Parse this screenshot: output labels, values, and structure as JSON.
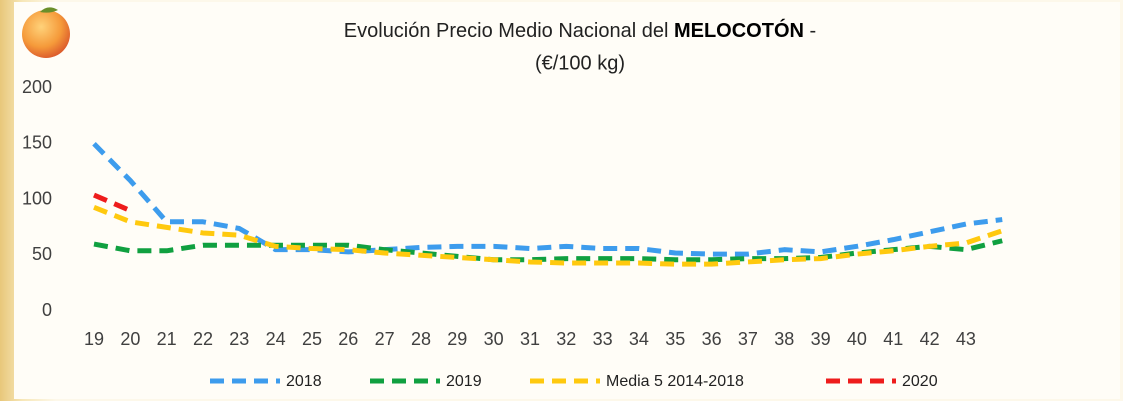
{
  "chart_data": {
    "type": "line",
    "title": "Evolución Precio Medio Nacional del",
    "title_highlight": "MELOCOTÓN",
    "title_suffix": "-",
    "subtitle": "(€/100 kg)",
    "categories": [
      "19",
      "20",
      "21",
      "22",
      "23",
      "24",
      "25",
      "26",
      "27",
      "28",
      "29",
      "30",
      "31",
      "32",
      "33",
      "34",
      "35",
      "36",
      "37",
      "38",
      "39",
      "40",
      "41",
      "42",
      "43",
      null
    ],
    "series": [
      {
        "name": "2018",
        "color": "#3d9ced",
        "values": [
          150,
          117,
          80,
          80,
          74,
          55,
          55,
          53,
          55,
          57,
          58,
          58,
          56,
          58,
          56,
          56,
          52,
          51,
          51,
          55,
          53,
          58,
          64,
          71,
          78,
          82
        ]
      },
      {
        "name": "2019",
        "color": "#10a040",
        "values": [
          60,
          54,
          54,
          59,
          59,
          59,
          59,
          59,
          55,
          52,
          49,
          46,
          46,
          47,
          47,
          47,
          46,
          46,
          47,
          47,
          48,
          52,
          55,
          58,
          55,
          63
        ]
      },
      {
        "name": "Media 5 2014-2018",
        "color": "#ffc90e",
        "values": [
          93,
          80,
          75,
          70,
          68,
          58,
          56,
          55,
          52,
          50,
          48,
          46,
          44,
          43,
          43,
          43,
          42,
          42,
          44,
          46,
          47,
          51,
          54,
          58,
          61,
          72
        ]
      },
      {
        "name": "2020",
        "color": "#ee1c1c",
        "values": [
          104,
          90,
          null,
          null,
          null,
          null,
          null,
          null,
          null,
          null,
          null,
          null,
          null,
          null,
          null,
          null,
          null,
          null,
          null,
          null,
          null,
          null,
          null,
          null,
          null,
          null
        ]
      }
    ],
    "ylim": [
      0,
      200
    ],
    "yticks": [
      0,
      50,
      100,
      150,
      200
    ],
    "grid": false,
    "legend": "bottom"
  }
}
